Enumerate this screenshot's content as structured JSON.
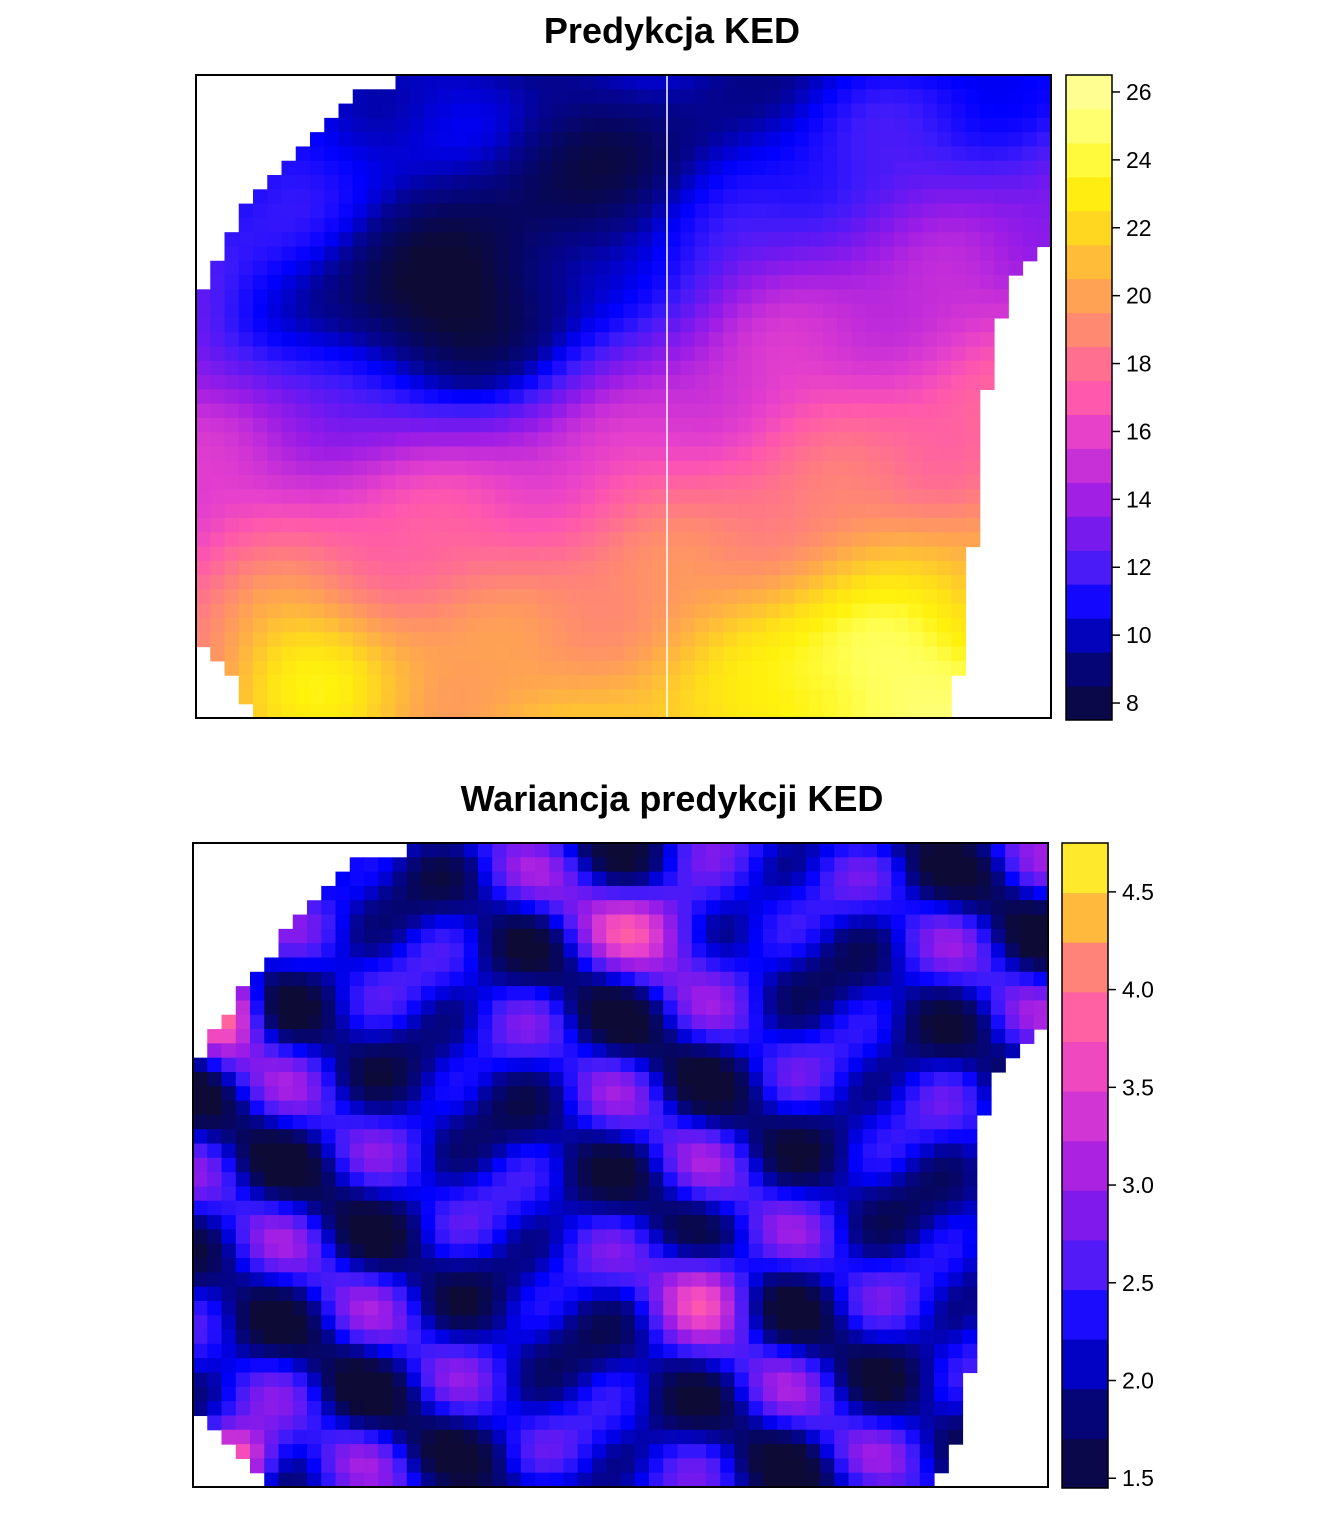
{
  "chart_data": [
    {
      "type": "heatmap",
      "title": "Predykcja KED",
      "colorbar": {
        "min": 7.5,
        "max": 26.5,
        "step": 1,
        "ticks": [
          8,
          10,
          12,
          14,
          16,
          18,
          20,
          22,
          24,
          26
        ],
        "tick_labels": [
          "8",
          "10",
          "12",
          "14",
          "16",
          "18",
          "20",
          "22",
          "24",
          "26"
        ]
      },
      "palette": [
        "#0d0a35",
        "#06065f",
        "#040493",
        "#0000ff",
        "#3d1afa",
        "#6e19f0",
        "#9a1ce6",
        "#c42ed8",
        "#e640cc",
        "#ff58ad",
        "#ff718e",
        "#ff8c6e",
        "#ffa64f",
        "#ffc233",
        "#ffdf19",
        "#fff20c",
        "#ffff57",
        "#ffff80",
        "#ffffa0"
      ],
      "grid": false
    },
    {
      "type": "heatmap",
      "title": "Wariancja predykcji KED",
      "colorbar": {
        "min": 1.45,
        "max": 4.75,
        "step": 0.25,
        "ticks": [
          1.5,
          2.0,
          2.5,
          3.0,
          3.5,
          4.0,
          4.5
        ],
        "tick_labels": [
          "1.5",
          "2.0",
          "2.5",
          "3.0",
          "3.5",
          "4.0",
          "4.5"
        ]
      },
      "palette": [
        "#0d0a35",
        "#06065f",
        "#040493",
        "#0000ff",
        "#3d1afa",
        "#6e19f0",
        "#9a1ce6",
        "#c42ed8",
        "#e640cc",
        "#ff58ad",
        "#ff718e",
        "#ffa64f",
        "#ffdf19",
        "#ffff57"
      ],
      "grid": false
    }
  ]
}
